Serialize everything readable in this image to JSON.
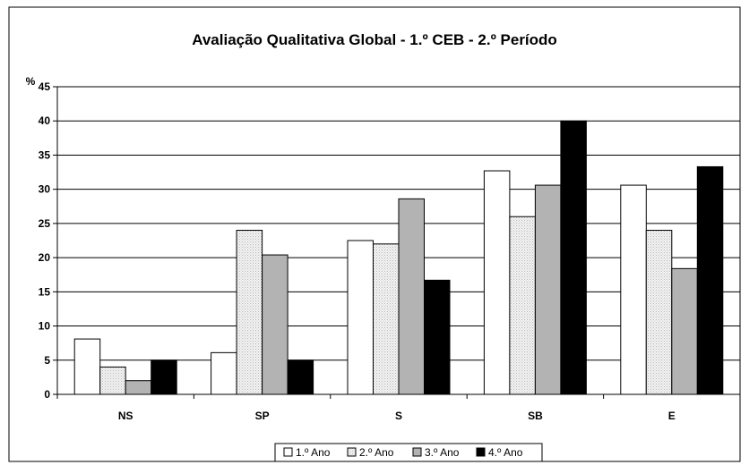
{
  "chart_data": {
    "type": "bar",
    "title": "Avaliação Qualitativa Global - 1.º CEB - 2.º Período",
    "ylabel": "%",
    "xlabel": "",
    "ylim": [
      0,
      45
    ],
    "yticks": [
      0,
      5,
      10,
      15,
      20,
      25,
      30,
      35,
      40,
      45
    ],
    "grid": true,
    "legend_position": "bottom",
    "categories": [
      "NS",
      "SP",
      "S",
      "SB",
      "E"
    ],
    "series": [
      {
        "name": "1.º Ano",
        "values": [
          8.1,
          6.1,
          22.5,
          32.7,
          30.6
        ],
        "fill": "#ffffff",
        "pattern": "none"
      },
      {
        "name": "2.º Ano",
        "values": [
          4.0,
          24.0,
          22.0,
          26.0,
          24.0
        ],
        "fill": "#e6e6e6",
        "pattern": "dots"
      },
      {
        "name": "3.º Ano",
        "values": [
          2.0,
          20.4,
          28.6,
          30.6,
          18.4
        ],
        "fill": "#b3b3b3",
        "pattern": "none"
      },
      {
        "name": "4.º Ano",
        "values": [
          5.0,
          5.0,
          16.7,
          40.0,
          33.3
        ],
        "fill": "#000000",
        "pattern": "none"
      }
    ]
  }
}
